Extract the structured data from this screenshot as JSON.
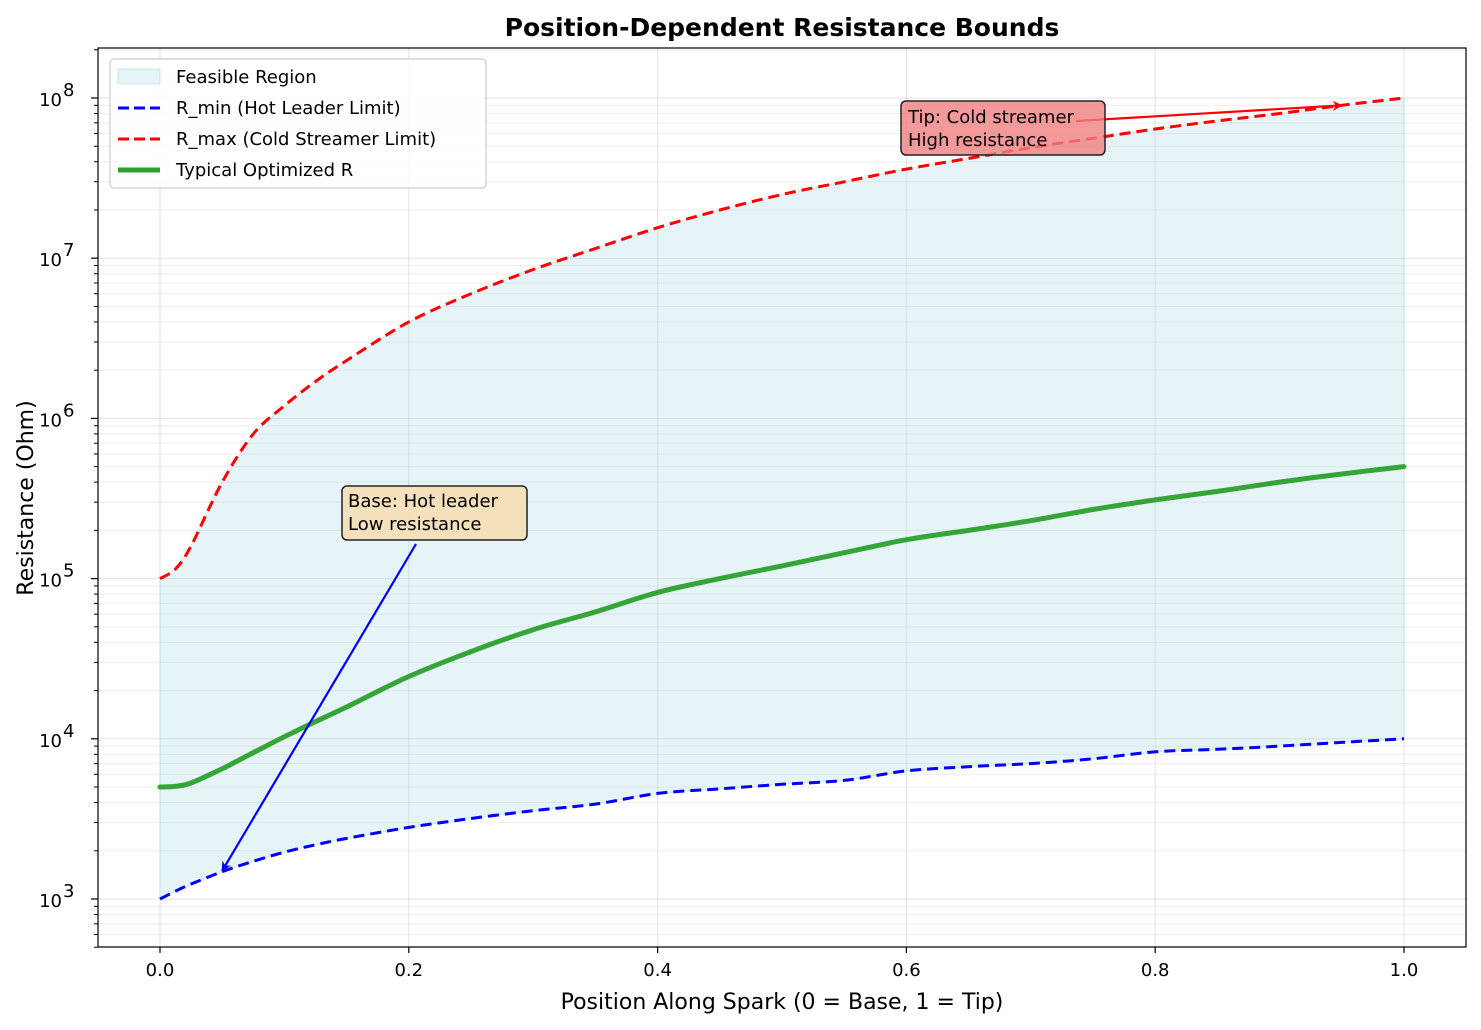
{
  "chart_data": {
    "type": "line",
    "title": "Position-Dependent Resistance Bounds",
    "xlabel": "Position Along Spark (0 = Base, 1 = Tip)",
    "ylabel": "Resistance (Ohm)",
    "xlim": [
      -0.05,
      1.05
    ],
    "ylim": [
      500,
      200000000
    ],
    "yscale": "log",
    "grid": true,
    "legend_position": "upper-left",
    "x_ticks": [
      {
        "value": 0.0,
        "label": "0.0"
      },
      {
        "value": 0.2,
        "label": "0.2"
      },
      {
        "value": 0.4,
        "label": "0.4"
      },
      {
        "value": 0.6,
        "label": "0.6"
      },
      {
        "value": 0.8,
        "label": "0.8"
      },
      {
        "value": 1.0,
        "label": "1.0"
      }
    ],
    "y_ticks": [
      {
        "value": 1000,
        "base": "10",
        "exp": "3"
      },
      {
        "value": 10000,
        "base": "10",
        "exp": "4"
      },
      {
        "value": 100000,
        "base": "10",
        "exp": "5"
      },
      {
        "value": 1000000,
        "base": "10",
        "exp": "6"
      },
      {
        "value": 10000000,
        "base": "10",
        "exp": "7"
      },
      {
        "value": 100000000,
        "base": "10",
        "exp": "8"
      }
    ],
    "x": [
      0.0,
      0.0125,
      0.025,
      0.05,
      0.075,
      0.1,
      0.125,
      0.15,
      0.2,
      0.25,
      0.3,
      0.35,
      0.4,
      0.45,
      0.5,
      0.55,
      0.6,
      0.65,
      0.7,
      0.75,
      0.8,
      0.85,
      0.9,
      0.95,
      1.0
    ],
    "series": [
      {
        "name": "Feasible Region",
        "kind": "fill_between",
        "color": "#add8e6",
        "opacity": 0.3
      },
      {
        "name": "R_min (Hot Leader Limit)",
        "kind": "line",
        "color": "#0000ff",
        "dash": true,
        "values": [
          1000,
          1120,
          1240,
          1480,
          1720,
          1960,
          2180,
          2390,
          2800,
          3180,
          3560,
          3910,
          4560,
          4870,
          5200,
          5500,
          6300,
          6700,
          7000,
          7500,
          8300,
          8600,
          9000,
          9500,
          10000
        ]
      },
      {
        "name": "R_max (Cold Streamer Limit)",
        "kind": "line",
        "color": "#ff0000",
        "dash": true,
        "values": [
          100000,
          115000,
          160000,
          400000,
          800000,
          1200000,
          1700000,
          2300000,
          4000000,
          6000000,
          8500000,
          11500000,
          15500000,
          20000000,
          25000000,
          30000000,
          36000000,
          42000000,
          49000000,
          56000000,
          64000000,
          72000000,
          80000000,
          90000000,
          100000000
        ]
      },
      {
        "name": "Typical Optimized R",
        "kind": "line",
        "color": "#2ca02c",
        "dash": false,
        "values": [
          5000,
          5050,
          5300,
          6500,
          8200,
          10300,
          12800,
          15800,
          24500,
          35000,
          48000,
          62000,
          82000,
          100000,
          120000,
          145000,
          175000,
          200000,
          230000,
          270000,
          310000,
          350000,
          400000,
          450000,
          500000
        ]
      }
    ],
    "annotations": [
      {
        "name": "tip",
        "lines": [
          "Tip: Cold streamer",
          "High resistance"
        ],
        "text_at": [
          0.6,
          50000000
        ],
        "arrow_to": [
          0.95,
          90000000
        ],
        "arrow_color": "#ff0000",
        "box_color": "#f08080"
      },
      {
        "name": "base",
        "lines": [
          "Base: Hot leader",
          "Low resistance"
        ],
        "text_at": [
          0.15,
          200000
        ],
        "arrow_to": [
          0.05,
          1500
        ],
        "arrow_color": "#0000ff",
        "box_color": "#f5deb3"
      }
    ]
  }
}
